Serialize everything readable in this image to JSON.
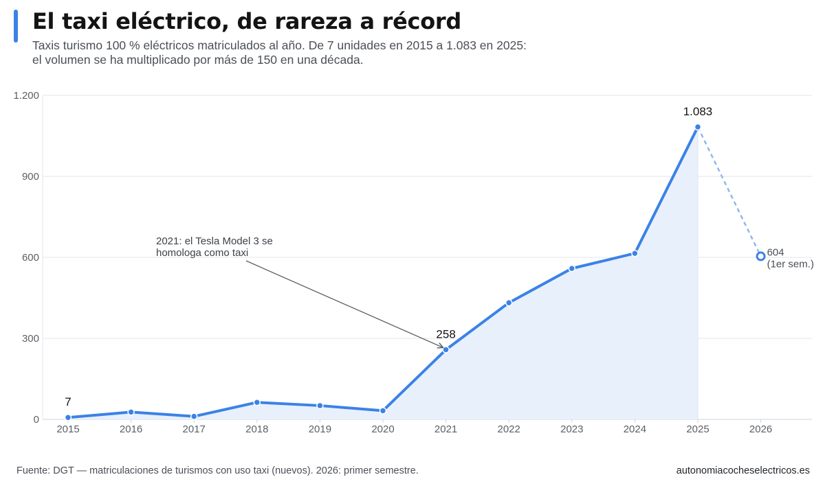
{
  "header": {
    "title": "El taxi eléctrico, de rareza a récord",
    "subtitle_lines": [
      "Taxis turismo 100 % eléctricos matriculados al año. De 7 unidades en 2015 a 1.083 en 2025:",
      "el volumen se ha multiplicado por más de 150 en una década."
    ]
  },
  "colors": {
    "accent": "#3b82e6",
    "line": "#3b82e6",
    "projection_line": "#8fb8ee",
    "area_fill": "#e8f0fc",
    "grid": "#e3e6ea",
    "annotation": "#555a61"
  },
  "chart_data": {
    "type": "line",
    "x": [
      "2015",
      "2016",
      "2017",
      "2018",
      "2019",
      "2020",
      "2021",
      "2022",
      "2023",
      "2024",
      "2025",
      "2026"
    ],
    "series": [
      {
        "values": [
          7,
          27,
          11,
          63,
          51,
          32,
          258,
          432,
          559,
          615,
          1083,
          null
        ]
      },
      {
        "style": "dashed",
        "x": [
          "2025",
          "2026"
        ],
        "values": [
          1083,
          604
        ]
      }
    ],
    "ylim": [
      0,
      1200
    ],
    "yticks": [
      0,
      300,
      600,
      900,
      1200
    ],
    "ytick_labels": [
      "0",
      "300",
      "600",
      "900",
      "1.200"
    ],
    "xlabel": "",
    "ylabel": "",
    "grid": "horizontal",
    "legend": "none",
    "area_under_line": "2015-2025",
    "data_labels": [
      {
        "x": "2015",
        "text": "7"
      },
      {
        "x": "2021",
        "text": "258"
      },
      {
        "x": "2025",
        "text": "1.083"
      }
    ],
    "projection_label": {
      "x": "2026",
      "lines": [
        "604",
        "(1er sem.)"
      ]
    },
    "annotation": {
      "lines": [
        "2021: el Tesla Model 3 se",
        "homologa como taxi"
      ],
      "target_x": "2021",
      "arrow": true
    }
  },
  "footer": {
    "source": "Fuente: DGT — matriculaciones de turismos con uso taxi (nuevos). 2026: primer semestre.",
    "site": "autonomiacocheselectricos.es"
  }
}
